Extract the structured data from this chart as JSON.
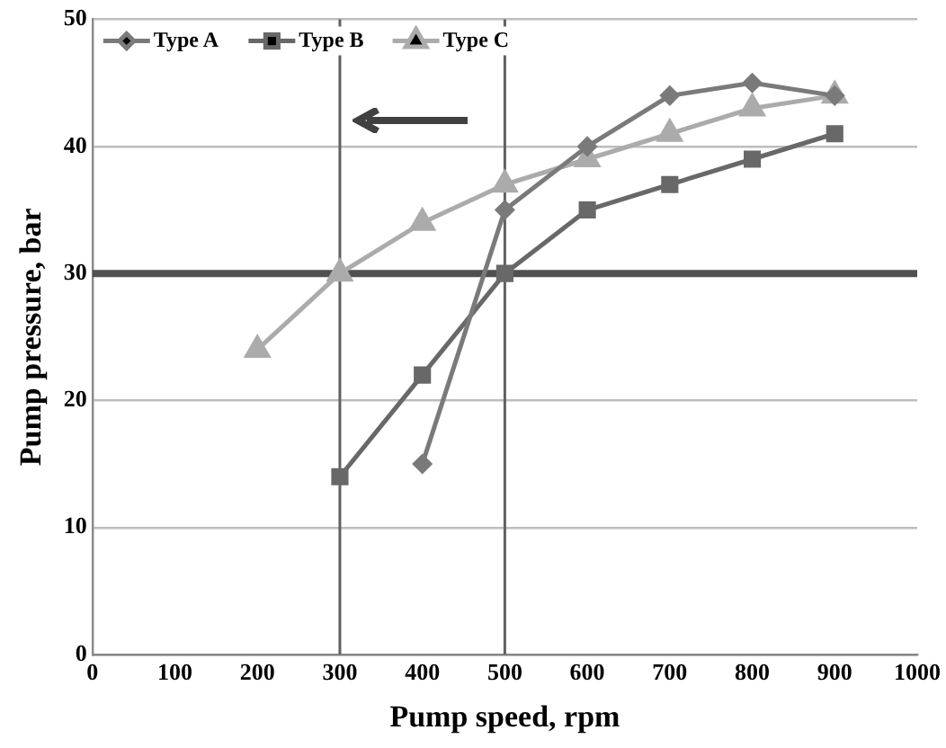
{
  "chart_data": {
    "type": "line",
    "xlabel": "Pump speed, rpm",
    "ylabel": "Pump pressure, bar",
    "xlim": [
      0,
      1000
    ],
    "xticks": [
      0,
      100,
      200,
      300,
      400,
      500,
      600,
      700,
      800,
      900,
      1000
    ],
    "ylim": [
      0,
      50
    ],
    "yticks": [
      0,
      10,
      20,
      30,
      40,
      50
    ],
    "grid": "y",
    "legend": "top left",
    "line_style": "solid",
    "series": [
      {
        "name": "Type A",
        "color": "#7a7a7a",
        "marker": "diamond",
        "x": [
          400,
          500,
          600,
          700,
          800,
          900
        ],
        "values": [
          15,
          35,
          40,
          44,
          45,
          44
        ]
      },
      {
        "name": "Type B",
        "color": "#686868",
        "marker": "square",
        "x": [
          300,
          400,
          500,
          600,
          700,
          800,
          900
        ],
        "values": [
          14,
          22,
          30,
          35,
          37,
          39,
          41
        ]
      },
      {
        "name": "Type C",
        "color": "#ababab",
        "marker": "triangle",
        "x": [
          200,
          300,
          400,
          500,
          600,
          700,
          800,
          900
        ],
        "values": [
          24,
          30,
          34,
          37,
          39,
          41,
          43,
          44
        ]
      }
    ],
    "ref_lines": [
      {
        "axis": "x",
        "value": 300,
        "color": "#606060"
      },
      {
        "axis": "x",
        "value": 500,
        "color": "#606060"
      },
      {
        "axis": "y",
        "value": 30,
        "color": "#505050"
      }
    ]
  }
}
